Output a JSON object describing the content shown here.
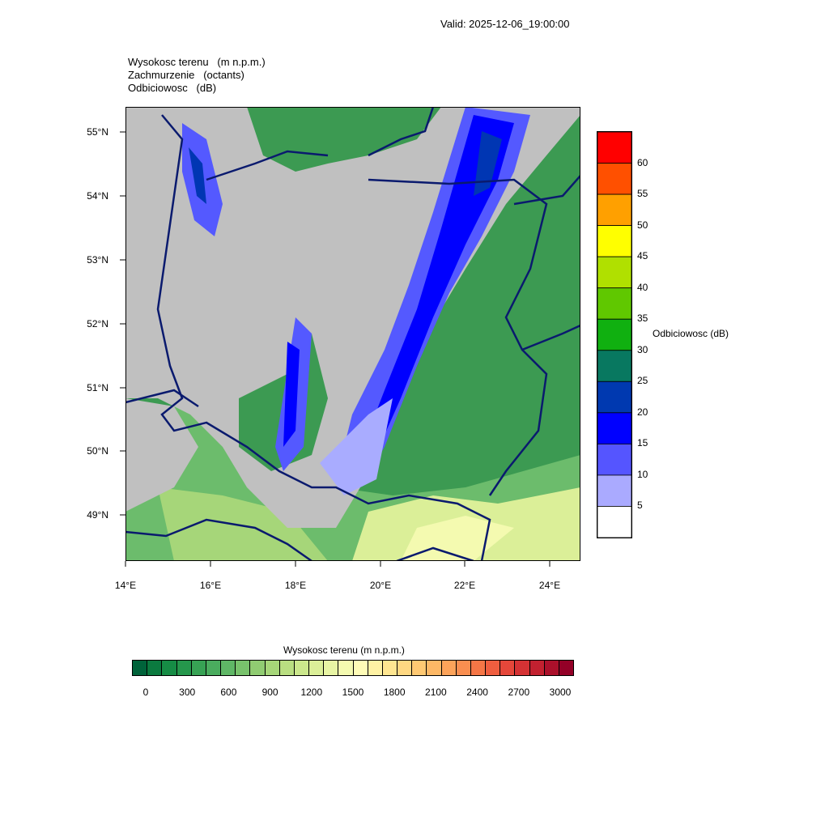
{
  "valid_label": "Valid: 2025-12-06_19:00:00",
  "header": {
    "line1": "Wysokosc terenu   (m n.p.m.)",
    "line2": "Zachmurzenie   (octants)",
    "line3": "Odbiciowosc   (dB)"
  },
  "map": {
    "lat_labels": [
      "55°N",
      "54°N",
      "53°N",
      "52°N",
      "51°N",
      "50°N",
      "49°N"
    ],
    "lon_labels": [
      "14°E",
      "16°E",
      "18°E",
      "20°E",
      "22°E",
      "24°E"
    ],
    "colors": {
      "cloud": "#c0c0c0",
      "border": "#0a1a6e",
      "refl_5": "#a9acff",
      "refl_10": "#5459ff",
      "refl_15": "#0000ff",
      "refl_20": "#0036b3",
      "terrain_low": "#3c9a52",
      "terrain_mid": "#7cc87c",
      "terrain_high": "#f0f0a0"
    }
  },
  "reflectivity_legend": {
    "title": "Odbiciowosc  (dB)",
    "labels": [
      "60",
      "55",
      "50",
      "45",
      "40",
      "35",
      "30",
      "25",
      "20",
      "15",
      "10",
      "5"
    ],
    "colors": [
      "#ff0000",
      "#ff5000",
      "#ffa000",
      "#ffff00",
      "#b0e000",
      "#60c800",
      "#10b010",
      "#087860",
      "#0039b0",
      "#0000ff",
      "#5555ff",
      "#aaaaff",
      "#ffffff"
    ]
  },
  "terrain_legend": {
    "title": "Wysokosc terenu  (m n.p.m.)",
    "labels": [
      "0",
      "300",
      "600",
      "900",
      "1200",
      "1500",
      "1800",
      "2100",
      "2400",
      "2700",
      "3000"
    ],
    "colors": [
      "#00633a",
      "#0b7a3f",
      "#168c45",
      "#25974c",
      "#37a254",
      "#4aac5e",
      "#5fb766",
      "#78c26c",
      "#90cc72",
      "#a6d679",
      "#b9de81",
      "#cbe78c",
      "#dbef98",
      "#e8f5a4",
      "#f4fab0",
      "#fffcb7",
      "#fff2a4",
      "#ffe691",
      "#ffd882",
      "#ffc973",
      "#fdb866",
      "#fca35a",
      "#f98e50",
      "#f57646",
      "#ef5e3f",
      "#e5473a",
      "#d53234",
      "#c22130",
      "#ab102b",
      "#930027"
    ]
  }
}
